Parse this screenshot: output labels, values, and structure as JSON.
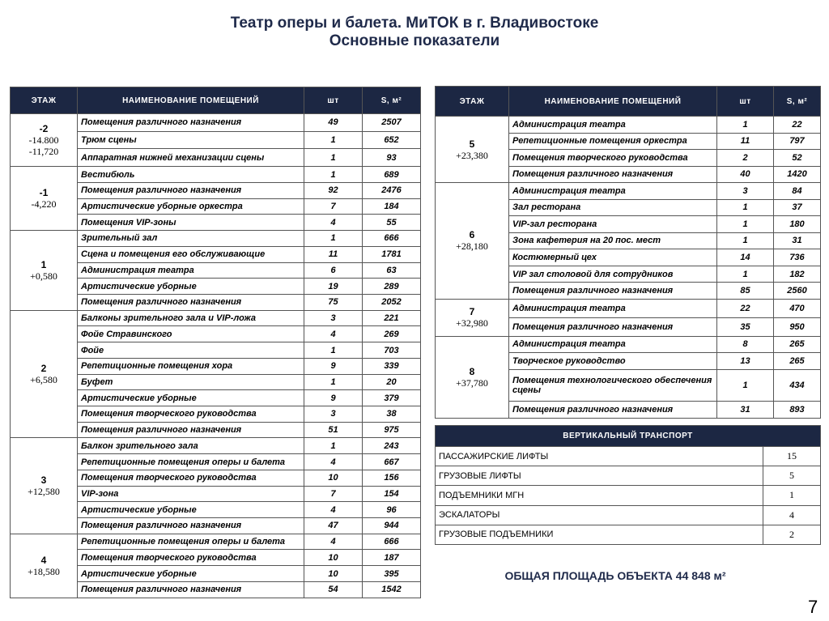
{
  "header": {
    "title_line1": "Театр оперы и балета. МиТОК в г. Владивостоке",
    "title_line2": "Основные показатели"
  },
  "left_table": {
    "columns": [
      "ЭТАЖ",
      "НАИМЕНОВАНИЕ ПОМЕЩЕНИЙ",
      "шт",
      "S, м²"
    ],
    "groups": [
      {
        "floor": "-2",
        "levels": [
          "-14.800",
          "-11,720"
        ],
        "rows": [
          [
            "Помещения различного назначения",
            49,
            2507
          ],
          [
            "Трюм сцены",
            1,
            652
          ],
          [
            "Аппаратная нижней механизации сцены",
            1,
            93
          ]
        ]
      },
      {
        "floor": "-1",
        "levels": [
          "-4,220"
        ],
        "rows": [
          [
            "Вестибюль",
            1,
            689
          ],
          [
            "Помещения различного назначения",
            92,
            2476
          ],
          [
            "Артистические уборные оркестра",
            7,
            184
          ],
          [
            "Помещения VIP-зоны",
            4,
            55
          ]
        ]
      },
      {
        "floor": "1",
        "levels": [
          "+0,580"
        ],
        "rows": [
          [
            "Зрительный зал",
            1,
            666
          ],
          [
            "Сцена и помещения его обслуживающие",
            11,
            1781
          ],
          [
            "Администрация театра",
            6,
            63
          ],
          [
            "Артистические уборные",
            19,
            289
          ],
          [
            "Помещения различного назначения",
            75,
            2052
          ]
        ]
      },
      {
        "floor": "2",
        "levels": [
          "+6,580"
        ],
        "rows": [
          [
            "Балконы зрительного зала и VIP-ложа",
            3,
            221
          ],
          [
            "Фойе Стравинского",
            4,
            269
          ],
          [
            "Фойе",
            1,
            703
          ],
          [
            "Репетиционные помещения хора",
            9,
            339
          ],
          [
            "Буфет",
            1,
            20
          ],
          [
            "Артистические уборные",
            9,
            379
          ],
          [
            "Помещения творческого руководства",
            3,
            38
          ],
          [
            "Помещения различного назначения",
            51,
            975
          ]
        ]
      },
      {
        "floor": "3",
        "levels": [
          "+12,580"
        ],
        "rows": [
          [
            "Балкон зрительного зала",
            1,
            243
          ],
          [
            "Репетиционные помещения оперы и балета",
            4,
            667
          ],
          [
            "Помещения творческого руководства",
            10,
            156
          ],
          [
            "VIP-зона",
            7,
            154
          ],
          [
            "Артистические уборные",
            4,
            96
          ],
          [
            "Помещения различного назначения",
            47,
            944
          ]
        ]
      },
      {
        "floor": "4",
        "levels": [
          "+18,580"
        ],
        "rows": [
          [
            "Репетиционные помещения оперы и балета",
            4,
            666
          ],
          [
            "Помещения творческого руководства",
            10,
            187
          ],
          [
            "Артистические уборные",
            10,
            395
          ],
          [
            "Помещения различного назначения",
            54,
            1542
          ]
        ]
      }
    ]
  },
  "right_table": {
    "columns": [
      "ЭТАЖ",
      "НАИМЕНОВАНИЕ ПОМЕЩЕНИЙ",
      "шт",
      "S, м²"
    ],
    "groups": [
      {
        "floor": "5",
        "levels": [
          "+23,380"
        ],
        "rows": [
          [
            "Администрация театра",
            1,
            22
          ],
          [
            "Репетиционные помещения оркестра",
            11,
            797
          ],
          [
            "Помещения творческого руководства",
            2,
            52
          ],
          [
            "Помещения различного назначения",
            40,
            1420
          ]
        ]
      },
      {
        "floor": "6",
        "levels": [
          "+28,180"
        ],
        "rows": [
          [
            "Администрация театра",
            3,
            84
          ],
          [
            "Зал ресторана",
            1,
            37
          ],
          [
            "VIP-зал ресторана",
            1,
            180
          ],
          [
            "Зона кафетерия на 20 пос. мест",
            1,
            31
          ],
          [
            "Костюмерный цех",
            14,
            736
          ],
          [
            "VIP зал столовой для сотрудников",
            1,
            182
          ],
          [
            "Помещения различного назначения",
            85,
            2560
          ]
        ]
      },
      {
        "floor": "7",
        "levels": [
          "+32,980"
        ],
        "rows": [
          [
            "Администрация театра",
            22,
            470
          ],
          [
            "Помещения различного назначения",
            35,
            950
          ]
        ]
      },
      {
        "floor": "8",
        "levels": [
          "+37,780"
        ],
        "rows": [
          [
            "Администрация театра",
            8,
            265
          ],
          [
            "Творческое руководство",
            13,
            265
          ],
          [
            "Помещения технологического обеспечения сцены",
            1,
            434
          ],
          [
            "Помещения различного назначения",
            31,
            893
          ]
        ]
      }
    ]
  },
  "transport": {
    "title": "ВЕРТИКАЛЬНЫЙ ТРАНСПОРТ",
    "rows": [
      [
        "ПАССАЖИРСКИЕ ЛИФТЫ",
        15
      ],
      [
        "ГРУЗОВЫЕ ЛИФТЫ",
        5
      ],
      [
        "ПОДЪЕМНИКИ МГН",
        1
      ],
      [
        "ЭСКАЛАТОРЫ",
        4
      ],
      [
        "ГРУЗОВЫЕ ПОДЪЕМНИКИ",
        2
      ]
    ]
  },
  "total": "ОБЩАЯ ПЛОЩАДЬ ОБЪЕКТА 44 848 м²",
  "page_number": "7"
}
